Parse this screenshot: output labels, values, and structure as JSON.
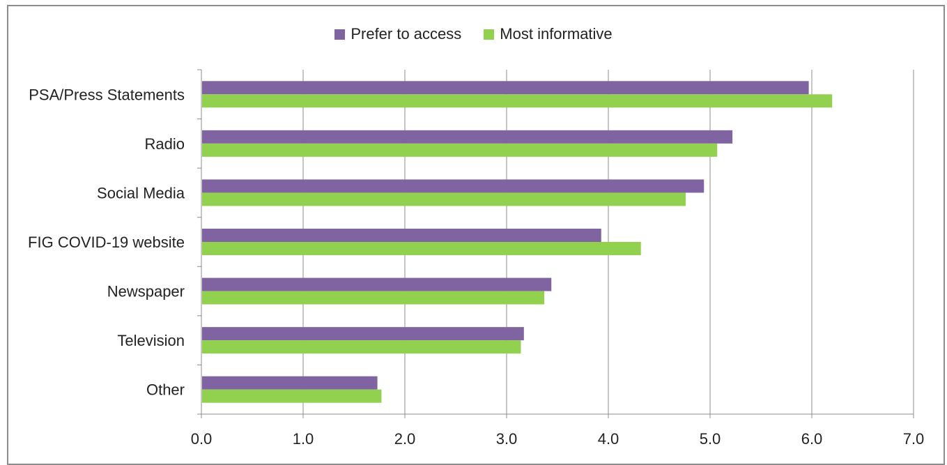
{
  "chart_data": {
    "type": "bar",
    "orientation": "horizontal",
    "categories": [
      "PSA/Press Statements",
      "Radio",
      "Social Media",
      "FIG COVID-19 website",
      "Newspaper",
      "Television",
      "Other"
    ],
    "series": [
      {
        "name": "Prefer to access",
        "color": "#8064a2",
        "values": [
          5.97,
          5.22,
          4.94,
          3.93,
          3.44,
          3.17,
          1.73
        ]
      },
      {
        "name": "Most informative",
        "color": "#92d050",
        "values": [
          6.2,
          5.07,
          4.76,
          4.32,
          3.37,
          3.14,
          1.77
        ]
      }
    ],
    "x_ticks": [
      "0.0",
      "1.0",
      "2.0",
      "3.0",
      "4.0",
      "5.0",
      "6.0",
      "7.0"
    ],
    "xlim": [
      0,
      7
    ],
    "grid": "vertical",
    "legend_position": "top"
  }
}
